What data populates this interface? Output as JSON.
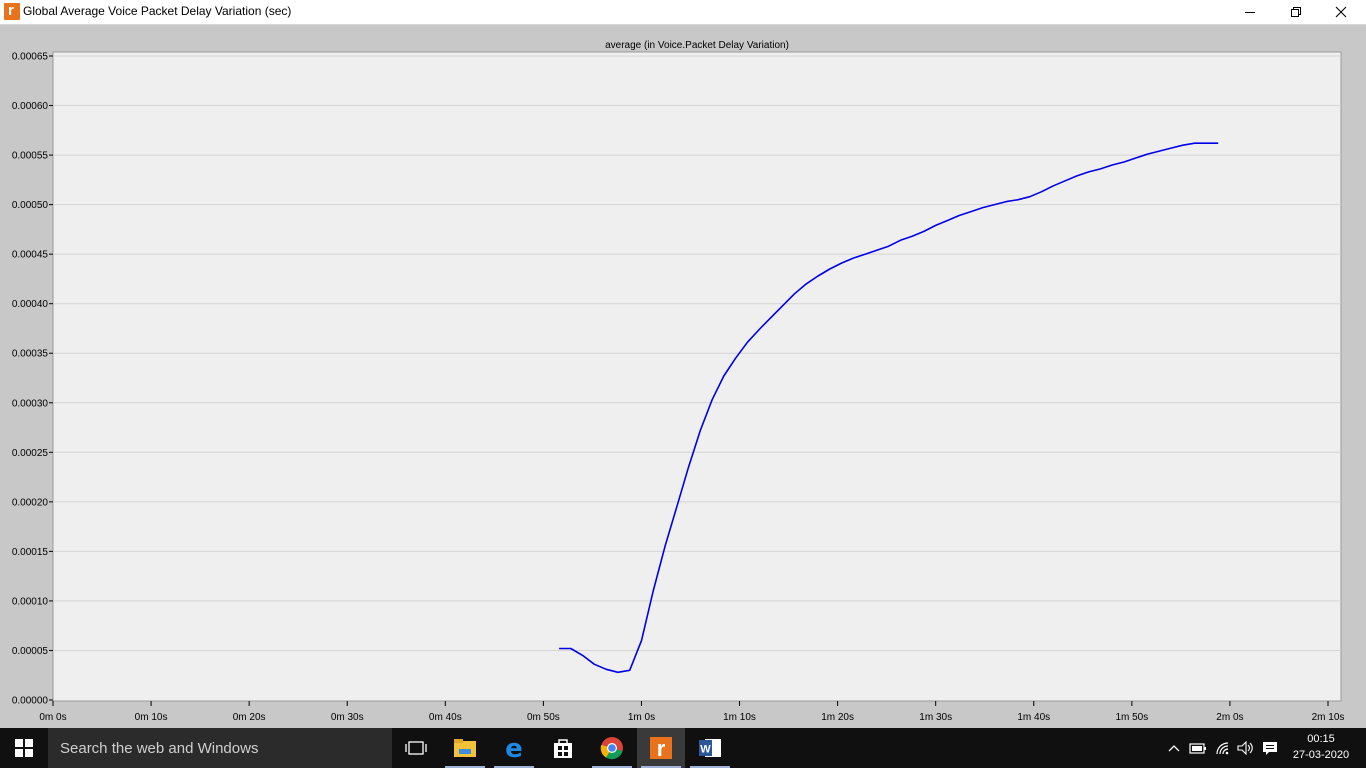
{
  "window": {
    "title": "Global Average Voice Packet Delay Variation (sec)",
    "controls": {
      "minimize": "minimize",
      "maximize": "maximize",
      "close": "close"
    }
  },
  "chart_data": {
    "type": "line",
    "title": "average (in Voice.Packet Delay Variation)",
    "xlabel": "",
    "ylabel": "",
    "xlim": [
      0,
      130
    ],
    "ylim": [
      0,
      0.00065
    ],
    "x_ticks": [
      "0m 0s",
      "0m 10s",
      "0m 20s",
      "0m 30s",
      "0m 40s",
      "0m 50s",
      "1m 0s",
      "1m 10s",
      "1m 20s",
      "1m 30s",
      "1m 40s",
      "1m 50s",
      "2m 0s",
      "2m 10s"
    ],
    "y_ticks": [
      "0.00000",
      "0.00005",
      "0.00010",
      "0.00015",
      "0.00020",
      "0.00025",
      "0.00030",
      "0.00035",
      "0.00040",
      "0.00045",
      "0.00050",
      "0.00055",
      "0.00060",
      "0.00065"
    ],
    "grid": true,
    "line_color": "#0000e8",
    "series": [
      {
        "x": [
          51.6,
          52.8,
          54.0,
          55.2,
          56.4,
          57.6,
          58.8,
          60.0,
          61.2,
          62.4,
          63.6,
          64.8,
          66.0,
          67.2,
          68.4,
          69.6,
          70.8,
          72.0,
          73.2,
          74.4,
          75.6,
          76.8,
          78.0,
          79.2,
          80.4,
          81.6,
          82.8,
          84.0,
          85.2,
          86.4,
          87.6,
          88.8,
          90.0,
          91.2,
          92.4,
          93.6,
          94.8,
          96.0,
          97.2,
          98.4,
          99.6,
          100.8,
          102.0,
          103.2,
          104.4,
          105.6,
          106.8,
          108.0,
          109.2,
          110.4,
          111.6,
          112.8,
          114.0,
          115.2,
          116.4,
          117.6,
          118.8
        ],
        "y": [
          5.2e-05,
          5.2e-05,
          4.5e-05,
          3.6e-05,
          3.1e-05,
          2.8e-05,
          3e-05,
          6e-05,
          0.00011,
          0.000155,
          0.000195,
          0.000235,
          0.000272,
          0.000303,
          0.000327,
          0.000345,
          0.000361,
          0.000374,
          0.000386,
          0.000398,
          0.00041,
          0.00042,
          0.000428,
          0.000435,
          0.000441,
          0.000446,
          0.00045,
          0.000454,
          0.000458,
          0.000464,
          0.000468,
          0.000473,
          0.000479,
          0.000484,
          0.000489,
          0.000493,
          0.000497,
          0.0005,
          0.000503,
          0.000505,
          0.000508,
          0.000513,
          0.000519,
          0.000524,
          0.000529,
          0.000533,
          0.000536,
          0.00054,
          0.000543,
          0.000547,
          0.000551,
          0.000554,
          0.000557,
          0.00056,
          0.000562,
          0.000562,
          0.000562
        ]
      }
    ]
  },
  "taskbar": {
    "search_placeholder": "Search the web and Windows",
    "apps": [
      "task-view",
      "file-explorer",
      "edge",
      "store",
      "chrome",
      "riverbed-modeler",
      "word"
    ],
    "clock_time": "00:15",
    "clock_date": "27-03-2020"
  }
}
